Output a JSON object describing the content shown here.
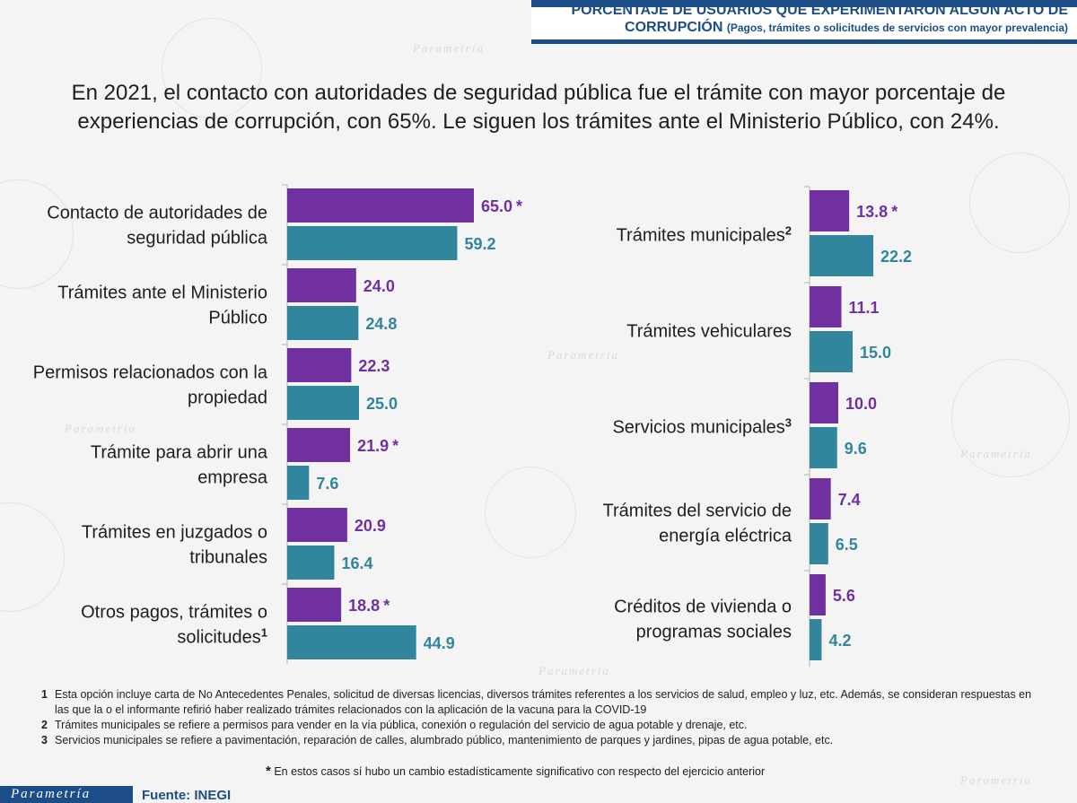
{
  "header": {
    "title_line1": "PORCENTAJE DE USUARIOS QUE EXPERIMENTARON ALGÚN ACTO DE",
    "title_line2": "CORRUPCIÓN",
    "title_sub": "(Pagos, trámites o solicitudes de servicios con mayor prevalencia)"
  },
  "headline": "En 2021, el contacto con autoridades de seguridad pública fue el trámite con mayor porcentaje de experiencias de corrupción, con 65%. Le siguen los trámites ante el Ministerio Público, con 24%.",
  "colors": {
    "series_1": "#7030a0",
    "series_2": "#31859c",
    "brand": "#1d4d86"
  },
  "chart_data": [
    {
      "type": "bar",
      "orientation": "horizontal",
      "series_colors": [
        "#7030a0",
        "#31859c"
      ],
      "categories": [
        {
          "lines": [
            "Contacto de autoridades de",
            "seguridad pública"
          ],
          "sup": ""
        },
        {
          "lines": [
            "Trámites ante el Ministerio",
            "Público"
          ],
          "sup": ""
        },
        {
          "lines": [
            "Permisos relacionados con la",
            "propiedad"
          ],
          "sup": ""
        },
        {
          "lines": [
            "Trámite para abrir una",
            "empresa"
          ],
          "sup": ""
        },
        {
          "lines": [
            "Trámites en juzgados o",
            "tribunales"
          ],
          "sup": ""
        },
        {
          "lines": [
            "Otros pagos, trámites o",
            "solicitudes"
          ],
          "sup": "1"
        }
      ],
      "series": [
        {
          "name": "series_1",
          "values": [
            65.0,
            24.0,
            22.3,
            21.9,
            20.9,
            18.8
          ],
          "labels": [
            "65.0",
            "24.0",
            "22.3",
            "21.9",
            "20.9",
            "18.8"
          ],
          "significant": [
            true,
            false,
            false,
            true,
            false,
            true
          ]
        },
        {
          "name": "series_2",
          "values": [
            59.2,
            24.8,
            25.0,
            7.6,
            16.4,
            44.9
          ],
          "labels": [
            "59.2",
            "24.8",
            "25.0",
            "7.6",
            "16.4",
            "44.9"
          ],
          "significant": [
            false,
            false,
            false,
            false,
            false,
            false
          ]
        }
      ]
    },
    {
      "type": "bar",
      "orientation": "horizontal",
      "series_colors": [
        "#7030a0",
        "#31859c"
      ],
      "categories": [
        {
          "lines": [
            "Trámites municipales"
          ],
          "sup": "2"
        },
        {
          "lines": [
            "Trámites vehiculares"
          ],
          "sup": ""
        },
        {
          "lines": [
            "Servicios municipales"
          ],
          "sup": "3"
        },
        {
          "lines": [
            "Trámites del servicio de",
            "energía eléctrica"
          ],
          "sup": ""
        },
        {
          "lines": [
            "Créditos de vivienda o",
            "programas sociales"
          ],
          "sup": ""
        }
      ],
      "series": [
        {
          "name": "series_1",
          "values": [
            13.8,
            11.1,
            10.0,
            7.4,
            5.6
          ],
          "labels": [
            "13.8",
            "11.1",
            "10.0",
            "7.4",
            "5.6"
          ],
          "significant": [
            true,
            false,
            false,
            false,
            false
          ]
        },
        {
          "name": "series_2",
          "values": [
            22.2,
            15.0,
            9.6,
            6.5,
            4.2
          ],
          "labels": [
            "22.2",
            "15.0",
            "9.6",
            "6.5",
            "4.2"
          ],
          "significant": [
            false,
            false,
            false,
            false,
            false
          ]
        }
      ]
    }
  ],
  "footnotes": [
    {
      "num": "1",
      "text": "Esta opción incluye carta de No Antecedentes Penales, solicitud de diversas licencias, diversos trámites referentes a los servicios de salud, empleo y luz, etc. Además, se consideran respuestas en las que la o el informante refirió haber realizado trámites relacionados con la aplicación de la vacuna para la COVID-19"
    },
    {
      "num": "2",
      "text": "Trámites municipales se refiere a permisos para vender en la vía pública, conexión o regulación del servicio de agua potable y drenaje, etc."
    },
    {
      "num": "3",
      "text": "Servicios municipales se refiere a pavimentación, reparación de calles, alumbrado público, mantenimiento de parques y jardines, pipas de agua potable, etc."
    }
  ],
  "significance_mark": "*",
  "significance_note": "En estos casos sí hubo un cambio estadísticamente significativo con respecto del ejercicio anterior",
  "watermark_text": "Parametría",
  "logo_text": "Parametría",
  "source": "Fuente: INEGI"
}
